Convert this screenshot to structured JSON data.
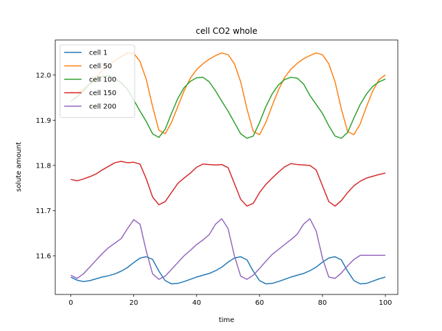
{
  "chart_data": {
    "type": "line",
    "title": "cell CO2 whole",
    "xlabel": "time",
    "ylabel": "solute amount",
    "xlim": [
      -4.95,
      103.95
    ],
    "ylim": [
      11.5145,
      12.0775
    ],
    "xticks": [
      0,
      20,
      40,
      60,
      80,
      100
    ],
    "xtick_labels": [
      "0",
      "20",
      "40",
      "60",
      "80",
      "100"
    ],
    "yticks": [
      11.6,
      11.7,
      11.8,
      11.9,
      12.0
    ],
    "ytick_labels": [
      "11.6",
      "11.7",
      "11.8",
      "11.9",
      "12.0"
    ],
    "grid": false,
    "legend_position": "top-left",
    "x": [
      0,
      2,
      4,
      6,
      8,
      10,
      12,
      14,
      16,
      18,
      20,
      22,
      24,
      26,
      28,
      30,
      32,
      34,
      36,
      38,
      40,
      42,
      44,
      46,
      48,
      50,
      52,
      54,
      56,
      58,
      60,
      62,
      64,
      66,
      68,
      70,
      72,
      74,
      76,
      78,
      80,
      82,
      84,
      86,
      88,
      90,
      92,
      94,
      96,
      98,
      100
    ],
    "series": [
      {
        "name": "cell 1",
        "color": "#1f77b4",
        "values": [
          11.553,
          11.546,
          11.543,
          11.545,
          11.549,
          11.553,
          11.556,
          11.56,
          11.566,
          11.574,
          11.585,
          11.595,
          11.598,
          11.592,
          11.566,
          11.545,
          11.538,
          11.539,
          11.543,
          11.548,
          11.553,
          11.557,
          11.561,
          11.567,
          11.575,
          11.586,
          11.595,
          11.598,
          11.591,
          11.566,
          11.545,
          11.538,
          11.539,
          11.543,
          11.548,
          11.553,
          11.557,
          11.561,
          11.567,
          11.575,
          11.586,
          11.595,
          11.598,
          11.591,
          11.566,
          11.545,
          11.538,
          11.539,
          11.544,
          11.549,
          11.553
        ]
      },
      {
        "name": "cell 50",
        "color": "#ff7f0e",
        "values": [
          11.963,
          11.96,
          11.968,
          11.98,
          11.995,
          12.01,
          12.022,
          12.032,
          12.041,
          12.049,
          12.048,
          12.03,
          11.99,
          11.93,
          11.878,
          11.87,
          11.895,
          11.93,
          11.965,
          11.993,
          12.012,
          12.025,
          12.035,
          12.043,
          12.049,
          12.045,
          12.025,
          11.985,
          11.925,
          11.875,
          11.868,
          11.895,
          11.932,
          11.967,
          11.995,
          12.013,
          12.026,
          12.036,
          12.043,
          12.049,
          12.045,
          12.025,
          11.985,
          11.925,
          11.875,
          11.868,
          11.892,
          11.93,
          11.965,
          11.99,
          12.0
        ]
      },
      {
        "name": "cell 100",
        "color": "#2ca02c",
        "values": [
          11.942,
          11.952,
          11.965,
          11.98,
          11.99,
          11.997,
          11.998,
          11.993,
          11.983,
          11.968,
          11.945,
          11.92,
          11.897,
          11.87,
          11.862,
          11.88,
          11.915,
          11.948,
          11.972,
          11.986,
          11.994,
          11.995,
          11.985,
          11.965,
          11.942,
          11.92,
          11.895,
          11.87,
          11.86,
          11.865,
          11.895,
          11.93,
          11.958,
          11.978,
          11.99,
          11.995,
          11.993,
          11.98,
          11.955,
          11.935,
          11.915,
          11.888,
          11.865,
          11.86,
          11.873,
          11.905,
          11.935,
          11.958,
          11.975,
          11.985,
          11.991
        ]
      },
      {
        "name": "cell 150",
        "color": "#d62728",
        "values": [
          11.769,
          11.766,
          11.77,
          11.775,
          11.781,
          11.79,
          11.798,
          11.806,
          11.809,
          11.806,
          11.807,
          11.803,
          11.77,
          11.73,
          11.713,
          11.72,
          11.74,
          11.76,
          11.772,
          11.783,
          11.796,
          11.803,
          11.802,
          11.801,
          11.802,
          11.795,
          11.76,
          11.725,
          11.71,
          11.716,
          11.74,
          11.758,
          11.772,
          11.785,
          11.797,
          11.804,
          11.802,
          11.801,
          11.8,
          11.79,
          11.755,
          11.72,
          11.71,
          11.722,
          11.74,
          11.755,
          11.765,
          11.772,
          11.776,
          11.78,
          11.783
        ]
      },
      {
        "name": "cell 200",
        "color": "#9467bd",
        "values": [
          11.557,
          11.55,
          11.56,
          11.575,
          11.59,
          11.605,
          11.618,
          11.628,
          11.638,
          11.66,
          11.68,
          11.67,
          11.61,
          11.56,
          11.548,
          11.555,
          11.57,
          11.585,
          11.6,
          11.612,
          11.625,
          11.635,
          11.647,
          11.67,
          11.682,
          11.66,
          11.6,
          11.555,
          11.548,
          11.557,
          11.572,
          11.588,
          11.603,
          11.614,
          11.625,
          11.636,
          11.648,
          11.67,
          11.682,
          11.655,
          11.595,
          11.553,
          11.55,
          11.562,
          11.578,
          11.592,
          11.601,
          11.601,
          11.601,
          11.601,
          11.601
        ]
      }
    ]
  }
}
